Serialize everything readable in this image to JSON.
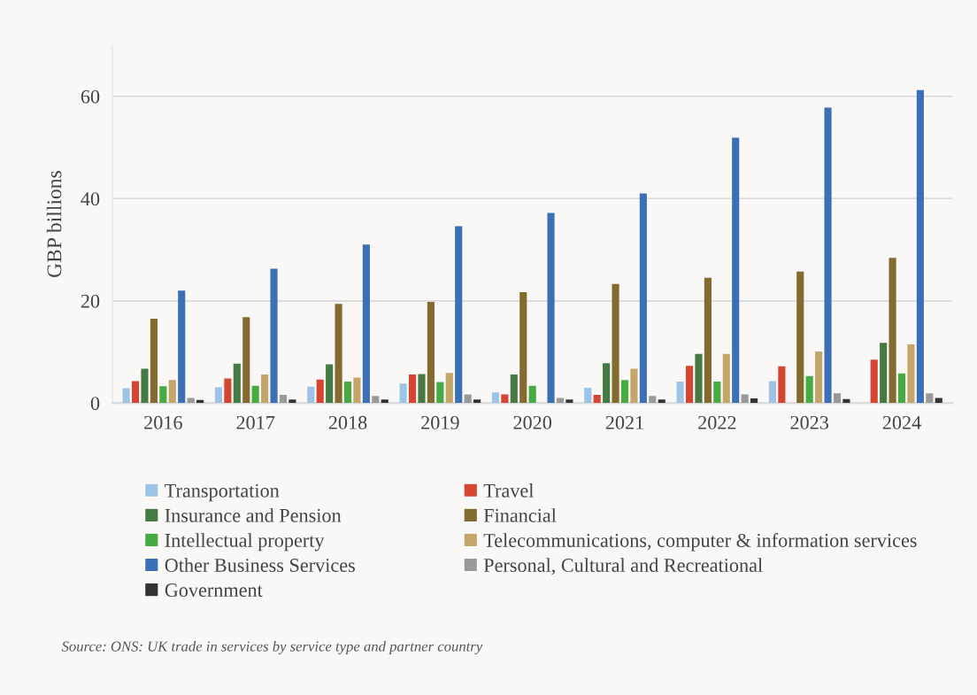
{
  "chart_data": {
    "type": "bar",
    "ylabel": "GBP billions",
    "categories": [
      "2016",
      "2017",
      "2018",
      "2019",
      "2020",
      "2021",
      "2022",
      "2023",
      "2024"
    ],
    "series": [
      {
        "name": "Transportation",
        "color": "#9dc3e6",
        "values": [
          2.9,
          3.1,
          3.2,
          3.8,
          2.1,
          3.0,
          4.2,
          4.3,
          null
        ]
      },
      {
        "name": "Travel",
        "color": "#d64531",
        "values": [
          4.3,
          4.8,
          4.6,
          5.6,
          1.7,
          1.6,
          7.3,
          7.2,
          8.5
        ]
      },
      {
        "name": "Insurance and Pension",
        "color": "#467a43",
        "values": [
          6.7,
          7.7,
          7.6,
          5.7,
          5.6,
          7.8,
          9.6,
          null,
          11.8
        ]
      },
      {
        "name": "Financial",
        "color": "#836a2e",
        "values": [
          16.5,
          16.8,
          19.4,
          19.8,
          21.7,
          23.3,
          24.5,
          25.7,
          28.4
        ]
      },
      {
        "name": "Intellectual property",
        "color": "#45ab42",
        "values": [
          3.3,
          3.4,
          4.2,
          4.1,
          3.4,
          4.5,
          4.2,
          5.3,
          5.8
        ]
      },
      {
        "name": "Telecommunications, computer & information services",
        "color": "#c4a56a",
        "values": [
          4.5,
          5.6,
          5.0,
          5.9,
          null,
          6.7,
          9.6,
          10.1,
          11.5
        ]
      },
      {
        "name": "Other Business Services",
        "color": "#3b6fb6",
        "values": [
          22.0,
          26.3,
          31.0,
          34.6,
          37.2,
          41.0,
          51.9,
          57.8,
          61.2
        ]
      },
      {
        "name": "Personal, Cultural and Recreational",
        "color": "#999999",
        "values": [
          1.0,
          1.6,
          1.4,
          1.7,
          1.0,
          1.4,
          1.7,
          1.9,
          1.9
        ]
      },
      {
        "name": "Government",
        "color": "#333333",
        "values": [
          0.6,
          0.7,
          0.7,
          0.7,
          0.7,
          0.7,
          0.9,
          0.8,
          1.0
        ]
      }
    ],
    "ylim": [
      0,
      70
    ],
    "yticks": [
      0,
      20,
      40,
      60
    ],
    "grid": "y",
    "legend": "bottom",
    "annotations": [
      "Source: ONS: UK trade in services by service type and partner country"
    ]
  }
}
